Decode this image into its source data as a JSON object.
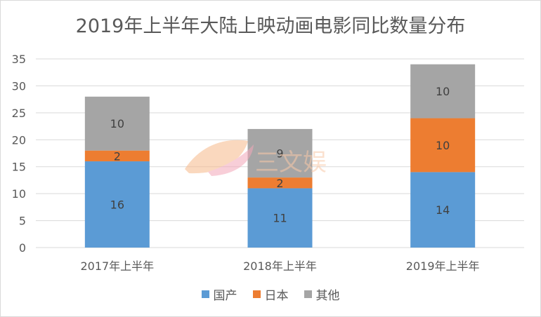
{
  "chart_data": {
    "type": "bar",
    "stacked": true,
    "title": "2019年上半年大陆上映动画电影同比数量分布",
    "categories": [
      "2017年上半年",
      "2018年上半年",
      "2019年上半年"
    ],
    "series": [
      {
        "name": "国产",
        "values": [
          16,
          11,
          14
        ],
        "color": "#5b9bd5"
      },
      {
        "name": "日本",
        "values": [
          2,
          2,
          10
        ],
        "color": "#ed7d31"
      },
      {
        "name": "其他",
        "values": [
          10,
          9,
          10
        ],
        "color": "#a5a5a5"
      }
    ],
    "ylim": [
      0,
      35
    ],
    "yticks": [
      0,
      5,
      10,
      15,
      20,
      25,
      30,
      35
    ],
    "grid": true,
    "legend_position": "bottom",
    "watermark_text": "三文娱"
  }
}
